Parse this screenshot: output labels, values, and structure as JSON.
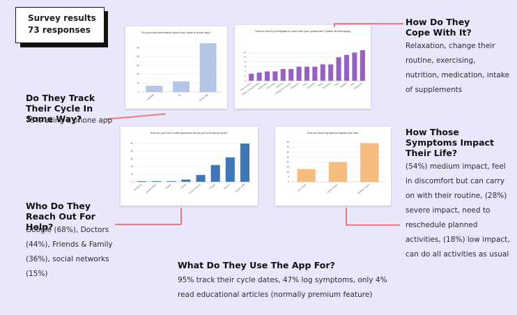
{
  "badge": {
    "line1": "Survey results",
    "line2": "73 responses"
  },
  "sections": {
    "track": {
      "title": "Do They Track Their Cycle In Some Way?",
      "text": "75% using a phone app"
    },
    "cope": {
      "title": "How Do They Cope With It?",
      "text": "Relaxation, change their routine, exercising, nutrition, medication, intake of supplements"
    },
    "reach": {
      "title": "Who Do They Reach Out For Help?",
      "text": "Google (68%), Doctors (44%), Friends & Family (36%), social networks (15%)"
    },
    "impact": {
      "title": "How Those Symptoms Impact Their Life?",
      "text": "(54%) medium impact, feel in discomfort but can carry on with their routine, (28%) severe impact, need to reschedule planned activities, (18%) low impact, can do all activities as usual"
    },
    "app": {
      "title": "What Do They Use The App For?",
      "text": "95% track their cycle dates, 47% log symptoms, only 4% read educational articles (normally premium feature)"
    }
  },
  "colors": {
    "accent_line": "#f07a72",
    "bar_blue_light": "#b6c6e6",
    "bar_purple": "#9561c2",
    "bar_blue": "#3e76b8",
    "bar_orange": "#f5bd80"
  },
  "chart_data": [
    {
      "type": "bar",
      "title": "Do you track information about your cycle in some way?",
      "categories": [
        "Calendar",
        "No",
        "Phone app"
      ],
      "values": [
        7,
        12,
        55
      ],
      "yticks": [
        "0",
        "10",
        "20",
        "30",
        "40",
        "50"
      ],
      "ylim": [
        0,
        55
      ],
      "color": "#b6c6e6"
    },
    {
      "type": "bar",
      "title": "How do you try to mitigate or cope with your symptoms? (select all that apply)",
      "categories": [
        "Sign of return",
        "Intake of supplements",
        "Medication",
        "Exercising",
        "Nutrition",
        "Change their routine",
        "Meditation",
        "Heat",
        "Hot drinks",
        "Sleep",
        "Stretching",
        "Yoga",
        "Walking",
        "Rest",
        "Relaxation"
      ],
      "values": [
        3,
        3.5,
        4,
        4,
        5,
        5,
        6,
        6,
        6,
        7,
        7,
        10,
        11,
        12,
        13
      ],
      "yticks": [
        "0",
        "2",
        "4",
        "6",
        "8",
        "10",
        "12"
      ],
      "ylim": [
        0,
        13
      ],
      "color": "#9561c2"
    },
    {
      "type": "bar",
      "title": "Who do you turn to with questions about your menstrual cycle?",
      "categories": [
        "Female Dr",
        "Gynaecologist",
        "Mother",
        "Family",
        "Social networks",
        "Friends",
        "Doctors",
        "Google / web"
      ],
      "values": [
        1,
        1,
        1,
        3,
        9,
        22,
        32,
        50
      ],
      "yticks": [
        "0",
        "10",
        "20",
        "30",
        "40",
        "50"
      ],
      "ylim": [
        0,
        50
      ],
      "color": "#3e76b8"
    },
    {
      "type": "bar",
      "title": "How do those symptoms impact your life?",
      "categories": [
        "Low impact",
        "Severe impact",
        "Medium impact"
      ],
      "values": [
        13,
        20,
        39
      ],
      "yticks": [
        "0",
        "5",
        "10",
        "15",
        "20",
        "25",
        "30",
        "35",
        "40"
      ],
      "ylim": [
        0,
        40
      ],
      "color": "#f5bd80"
    }
  ]
}
